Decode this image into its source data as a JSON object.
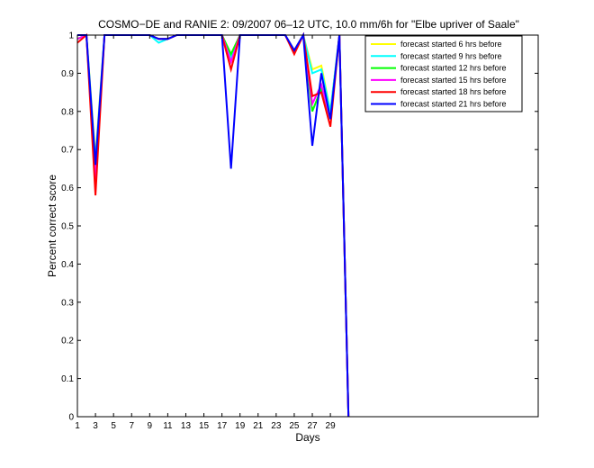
{
  "chart_data": {
    "type": "line",
    "title": "COSMO−DE and RANIE 2: 09/2007 06–12 UTC, 10.0 mm/6h for \"Elbe upriver of Saale\"",
    "xlabel": "Days",
    "ylabel": "Percent correct score",
    "xlim": [
      1,
      52
    ],
    "ylim": [
      0,
      1
    ],
    "xticks": [
      1,
      3,
      5,
      7,
      9,
      11,
      13,
      15,
      17,
      19,
      21,
      23,
      25,
      27,
      29
    ],
    "yticks": [
      0,
      0.1,
      0.2,
      0.3,
      0.4,
      0.5,
      0.6,
      0.7,
      0.8,
      0.9,
      1
    ],
    "ytick_labels": [
      "0",
      "0.1",
      "0.2",
      "0.3",
      "0.4",
      "0.5",
      "0.6",
      "0.7",
      "0.8",
      "0.9",
      "1"
    ],
    "legend_position": "top-right",
    "grid": false,
    "x": [
      1,
      2,
      3,
      4,
      5,
      6,
      7,
      8,
      9,
      10,
      11,
      12,
      13,
      14,
      15,
      16,
      17,
      18,
      19,
      20,
      21,
      22,
      23,
      24,
      25,
      26,
      27,
      28,
      29,
      30,
      31
    ],
    "series": [
      {
        "name": "forecast started 6 hrs before",
        "color": "#ffff00",
        "values": [
          0.99,
          1,
          0.68,
          1,
          1,
          1,
          1,
          1,
          1,
          0.99,
          0.99,
          1,
          1,
          1,
          1,
          1,
          1,
          0.95,
          1,
          1,
          1,
          1,
          1,
          1,
          0.96,
          1,
          0.91,
          0.92,
          0.8,
          1,
          0
        ]
      },
      {
        "name": "forecast started 9 hrs before",
        "color": "#00ffff",
        "values": [
          0.99,
          1,
          0.67,
          1,
          1,
          1,
          1,
          1,
          1,
          0.98,
          0.99,
          1,
          1,
          1,
          1,
          1,
          1,
          0.94,
          1,
          1,
          1,
          1,
          1,
          1,
          0.96,
          1,
          0.9,
          0.91,
          0.8,
          1,
          0
        ]
      },
      {
        "name": "forecast started 12 hrs before",
        "color": "#00ff00",
        "values": [
          0.99,
          1,
          0.64,
          1,
          1,
          1,
          1,
          1,
          1,
          0.99,
          0.99,
          1,
          1,
          1,
          1,
          1,
          1,
          0.95,
          1,
          1,
          1,
          1,
          1,
          1,
          0.96,
          1,
          0.8,
          0.86,
          0.78,
          1,
          0
        ]
      },
      {
        "name": "forecast started 15 hrs before",
        "color": "#ff00ff",
        "values": [
          0.99,
          1,
          0.62,
          1,
          1,
          1,
          1,
          1,
          1,
          0.99,
          0.99,
          1,
          1,
          1,
          1,
          1,
          1,
          0.93,
          1,
          1,
          1,
          1,
          1,
          1,
          0.96,
          1,
          0.82,
          0.87,
          0.78,
          1,
          0
        ]
      },
      {
        "name": "forecast started 18 hrs before",
        "color": "#ff0000",
        "values": [
          0.98,
          1,
          0.58,
          1,
          1,
          1,
          1,
          1,
          1,
          0.99,
          0.99,
          1,
          1,
          1,
          1,
          1,
          1,
          0.91,
          1,
          1,
          1,
          1,
          1,
          1,
          0.95,
          1,
          0.84,
          0.85,
          0.76,
          1,
          0
        ]
      },
      {
        "name": "forecast started 21 hrs before",
        "color": "#0000ff",
        "values": [
          1,
          1,
          0.66,
          1,
          1,
          1,
          1,
          1,
          1,
          0.99,
          0.99,
          1,
          1,
          1,
          1,
          1,
          1,
          0.65,
          1,
          1,
          1,
          1,
          1,
          1,
          0.96,
          1,
          0.71,
          0.9,
          0.78,
          1,
          0
        ]
      }
    ]
  }
}
